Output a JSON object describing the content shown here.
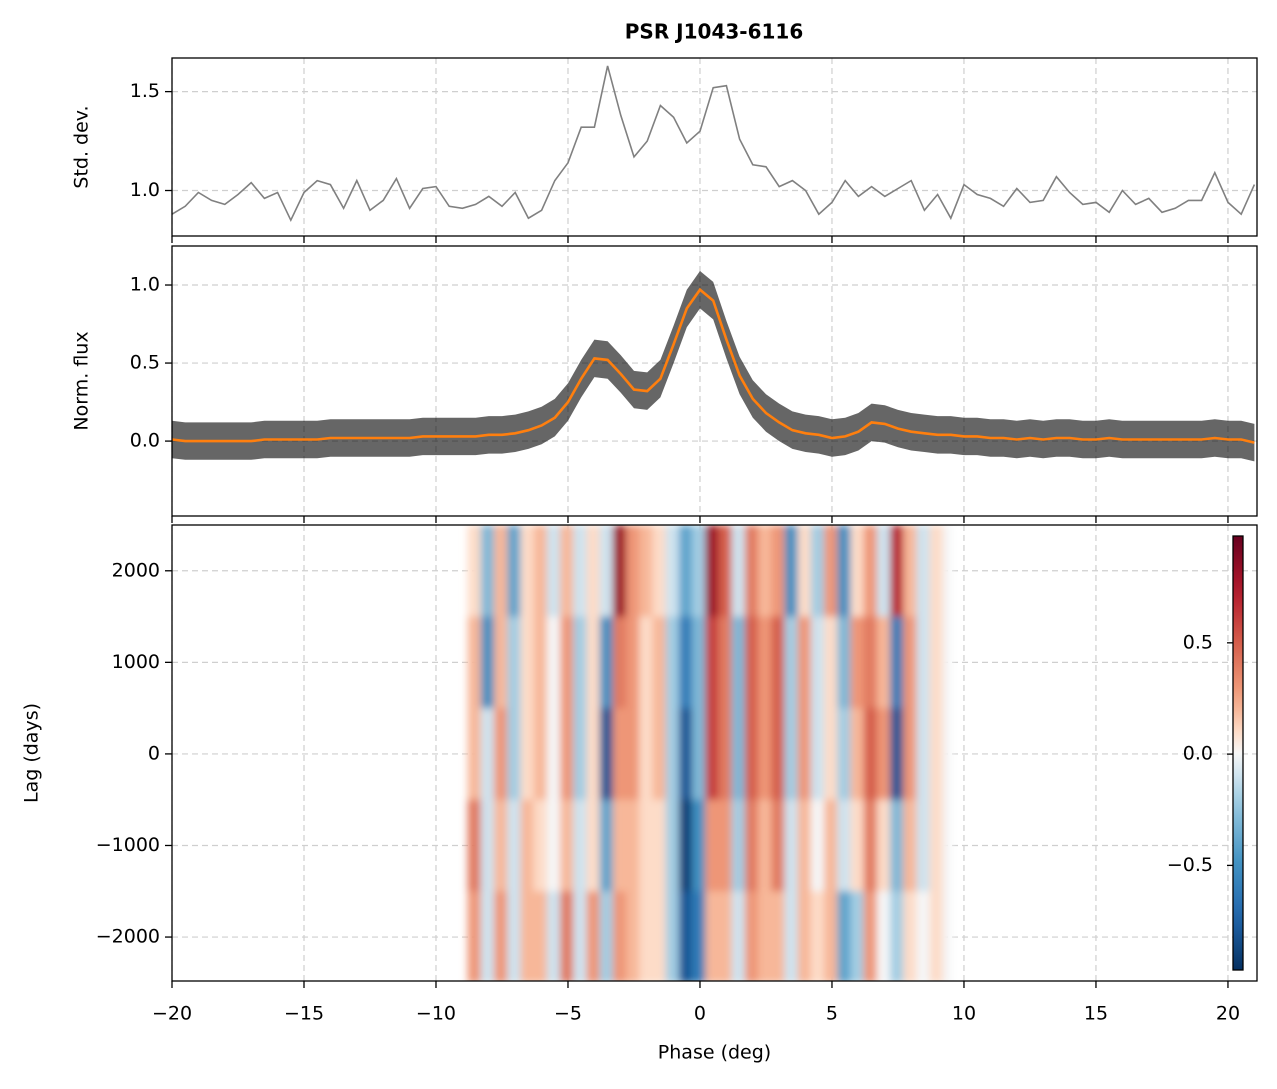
{
  "chart_data": [
    {
      "type": "line",
      "title": "PSR J1043-6116",
      "ylabel": "Std. dev.",
      "color": "#808080",
      "grid": true,
      "x": [
        -20,
        -19.5,
        -19,
        -18.5,
        -18,
        -17.5,
        -17,
        -16.5,
        -16,
        -15.5,
        -15,
        -14.5,
        -14,
        -13.5,
        -13,
        -12.5,
        -12,
        -11.5,
        -11,
        -10.5,
        -10,
        -9.5,
        -9,
        -8.5,
        -8,
        -7.5,
        -7,
        -6.5,
        -6,
        -5.5,
        -5,
        -4.5,
        -4,
        -3.5,
        -3,
        -2.5,
        -2,
        -1.5,
        -1,
        -0.5,
        0,
        0.5,
        1,
        1.5,
        2,
        2.5,
        3,
        3.5,
        4,
        4.5,
        5,
        5.5,
        6,
        6.5,
        7,
        7.5,
        8,
        8.5,
        9,
        9.5,
        10,
        10.5,
        11,
        11.5,
        12,
        12.5,
        13,
        13.5,
        14,
        14.5,
        15,
        15.5,
        16,
        16.5,
        17,
        17.5,
        18,
        18.5,
        19,
        19.5,
        20,
        20.5,
        21
      ],
      "values": [
        0.88,
        0.92,
        0.99,
        0.95,
        0.93,
        0.98,
        1.04,
        0.96,
        0.99,
        0.85,
        0.99,
        1.05,
        1.03,
        0.91,
        1.05,
        0.9,
        0.95,
        1.06,
        0.91,
        1.01,
        1.02,
        0.92,
        0.91,
        0.93,
        0.97,
        0.92,
        0.99,
        0.86,
        0.9,
        1.05,
        1.14,
        1.32,
        1.32,
        1.63,
        1.38,
        1.17,
        1.25,
        1.43,
        1.37,
        1.24,
        1.3,
        1.52,
        1.53,
        1.26,
        1.13,
        1.12,
        1.02,
        1.05,
        1.0,
        0.88,
        0.94,
        1.05,
        0.97,
        1.02,
        0.97,
        1.01,
        1.05,
        0.9,
        0.98,
        0.86,
        1.03,
        0.98,
        0.96,
        0.92,
        1.01,
        0.94,
        0.95,
        1.07,
        0.99,
        0.93,
        0.94,
        0.89,
        1.0,
        0.93,
        0.96,
        0.89,
        0.91,
        0.95,
        0.95,
        1.09,
        0.94,
        0.88,
        1.03
      ],
      "ylim": [
        0.77,
        1.67
      ],
      "yticks": [
        {
          "value": 1,
          "label": "1.0"
        },
        1.5
      ]
    },
    {
      "type": "line",
      "ylabel": "Norm. flux",
      "color": "#ff7f0e",
      "band_color": "#000000",
      "band_halfwidth": 0.12,
      "grid": true,
      "x": [
        -20,
        -19.5,
        -19,
        -18.5,
        -18,
        -17.5,
        -17,
        -16.5,
        -16,
        -15.5,
        -15,
        -14.5,
        -14,
        -13.5,
        -13,
        -12.5,
        -12,
        -11.5,
        -11,
        -10.5,
        -10,
        -9.5,
        -9,
        -8.5,
        -8,
        -7.5,
        -7,
        -6.5,
        -6,
        -5.5,
        -5,
        -4.5,
        -4,
        -3.5,
        -3,
        -2.5,
        -2,
        -1.5,
        -1,
        -0.5,
        0,
        0.5,
        1,
        1.5,
        2,
        2.5,
        3,
        3.5,
        4,
        4.5,
        5,
        5.5,
        6,
        6.5,
        7,
        7.5,
        8,
        8.5,
        9,
        9.5,
        10,
        10.5,
        11,
        11.5,
        12,
        12.5,
        13,
        13.5,
        14,
        14.5,
        15,
        15.5,
        16,
        16.5,
        17,
        17.5,
        18,
        18.5,
        19,
        19.5,
        20,
        20.5,
        21
      ],
      "values": [
        0.01,
        0,
        0,
        0,
        0,
        0,
        0,
        0.01,
        0.01,
        0.01,
        0.01,
        0.01,
        0.02,
        0.02,
        0.02,
        0.02,
        0.02,
        0.02,
        0.02,
        0.03,
        0.03,
        0.03,
        0.03,
        0.03,
        0.04,
        0.04,
        0.05,
        0.07,
        0.1,
        0.15,
        0.25,
        0.4,
        0.53,
        0.52,
        0.43,
        0.33,
        0.32,
        0.4,
        0.62,
        0.85,
        0.97,
        0.9,
        0.65,
        0.42,
        0.27,
        0.18,
        0.12,
        0.07,
        0.05,
        0.04,
        0.02,
        0.03,
        0.06,
        0.12,
        0.11,
        0.08,
        0.06,
        0.05,
        0.04,
        0.04,
        0.03,
        0.03,
        0.02,
        0.02,
        0.01,
        0.02,
        0.01,
        0.02,
        0.02,
        0.01,
        0.01,
        0.02,
        0.01,
        0.01,
        0.01,
        0.01,
        0.01,
        0.01,
        0.01,
        0.02,
        0.01,
        0.01,
        -0.01
      ],
      "ylim": [
        -0.48,
        1.25
      ],
      "yticks": [
        {
          "value": 0,
          "label": "0.0"
        },
        0.5,
        {
          "value": 1,
          "label": "1.0"
        }
      ]
    },
    {
      "type": "heatmap",
      "xlabel": "Phase (deg)",
      "ylabel": "Lag (days)",
      "colormap": "RdBu_r",
      "grid": true,
      "x_edges": [
        -8.8,
        -8.3,
        -7.8,
        -7.3,
        -6.8,
        -6.3,
        -5.8,
        -5.3,
        -4.8,
        -4.3,
        -3.8,
        -3.3,
        -2.8,
        -2.3,
        -1.8,
        -1.3,
        -0.8,
        -0.3,
        0.2,
        0.7,
        1.2,
        1.7,
        2.2,
        2.7,
        3.2,
        3.7,
        4.2,
        4.7,
        5.2,
        5.7,
        6.2,
        6.7,
        7.2,
        7.7,
        8.2,
        8.7,
        9.2,
        9.5
      ],
      "y_edges": [
        2500,
        1500,
        500,
        -500,
        -1500,
        -2500
      ],
      "values": [
        [
          0.1,
          -0.3,
          0.2,
          -0.4,
          0.1,
          0.2,
          -0.1,
          0.2,
          -0.1,
          0.1,
          -0.1,
          0.8,
          0.3,
          0.2,
          0.1,
          -0.1,
          -0.4,
          -0.2,
          0.8,
          0.5,
          -0.1,
          0.4,
          0.2,
          0.3,
          -0.5,
          0.1,
          -0.2,
          0.3,
          -0.5,
          0.1,
          0.3,
          -0.1,
          0.7,
          0.2,
          -0.1,
          0.1,
          0
        ],
        [
          0.2,
          -0.5,
          0.2,
          -0.2,
          0.1,
          0.2,
          0,
          0.3,
          -0.2,
          0.1,
          -0.5,
          0.4,
          0.3,
          0.1,
          0.2,
          -0.2,
          -0.6,
          -0.3,
          0.6,
          0.4,
          -0.3,
          0.5,
          0.3,
          0.5,
          -0.2,
          0.3,
          -0.1,
          0.1,
          -0.3,
          0.3,
          0.4,
          0.2,
          -0.6,
          0.3,
          -0.1,
          0.1,
          0
        ],
        [
          0.2,
          -0.1,
          0.3,
          -0.2,
          0.1,
          0.2,
          0,
          0.3,
          -0.2,
          0.1,
          -0.8,
          0.3,
          0.3,
          0.1,
          0.2,
          -0.2,
          -0.8,
          -0.3,
          0.6,
          0.4,
          -0.3,
          0.5,
          0.3,
          0.5,
          -0.2,
          0.3,
          -0.1,
          0.1,
          -0.2,
          0.2,
          0.5,
          0.3,
          -0.8,
          0.3,
          -0.1,
          0.1,
          0
        ],
        [
          0.4,
          -0.1,
          0.2,
          -0.1,
          0.2,
          0.1,
          0,
          0.2,
          -0.1,
          0.1,
          -0.4,
          0.2,
          0.2,
          0.1,
          0.1,
          -0.2,
          -0.9,
          -0.5,
          0.3,
          0.3,
          -0.2,
          0.4,
          0.2,
          0.4,
          -0.1,
          0.2,
          0,
          0.2,
          -0.1,
          0.1,
          0.4,
          0.1,
          -0.3,
          0.2,
          -0.1,
          0.1,
          0
        ],
        [
          0.3,
          -0.1,
          0.3,
          -0.1,
          0.2,
          0.2,
          -0.1,
          0.4,
          -0.1,
          0.3,
          -0.2,
          0.3,
          0.2,
          0.1,
          0.1,
          -0.2,
          -0.8,
          -0.6,
          0.2,
          0.2,
          -0.1,
          0.3,
          0.2,
          0.2,
          -0.1,
          0.2,
          0.1,
          0.2,
          -0.4,
          -0.2,
          0.3,
          0,
          -0.2,
          0.1,
          0,
          0.1,
          0
        ]
      ],
      "clim": [
        -0.97,
        0.98
      ],
      "colorbar_ticks": [
        {
          "value": -0.5,
          "label": "−0.5"
        },
        {
          "value": 0,
          "label": "0.0"
        },
        0.5
      ],
      "xlim": [
        -20,
        21.1
      ],
      "xticks": [
        {
          "value": -20,
          "label": "−20"
        },
        {
          "value": -15,
          "label": "−15"
        },
        {
          "value": -10,
          "label": "−10"
        },
        {
          "value": -5,
          "label": "−5"
        },
        0,
        5,
        10,
        15,
        20
      ],
      "ylim": [
        -2480,
        2500
      ],
      "yticks": [
        {
          "value": -2000,
          "label": "−2000"
        },
        {
          "value": -1000,
          "label": "−1000"
        },
        0,
        1000,
        2000
      ]
    }
  ]
}
